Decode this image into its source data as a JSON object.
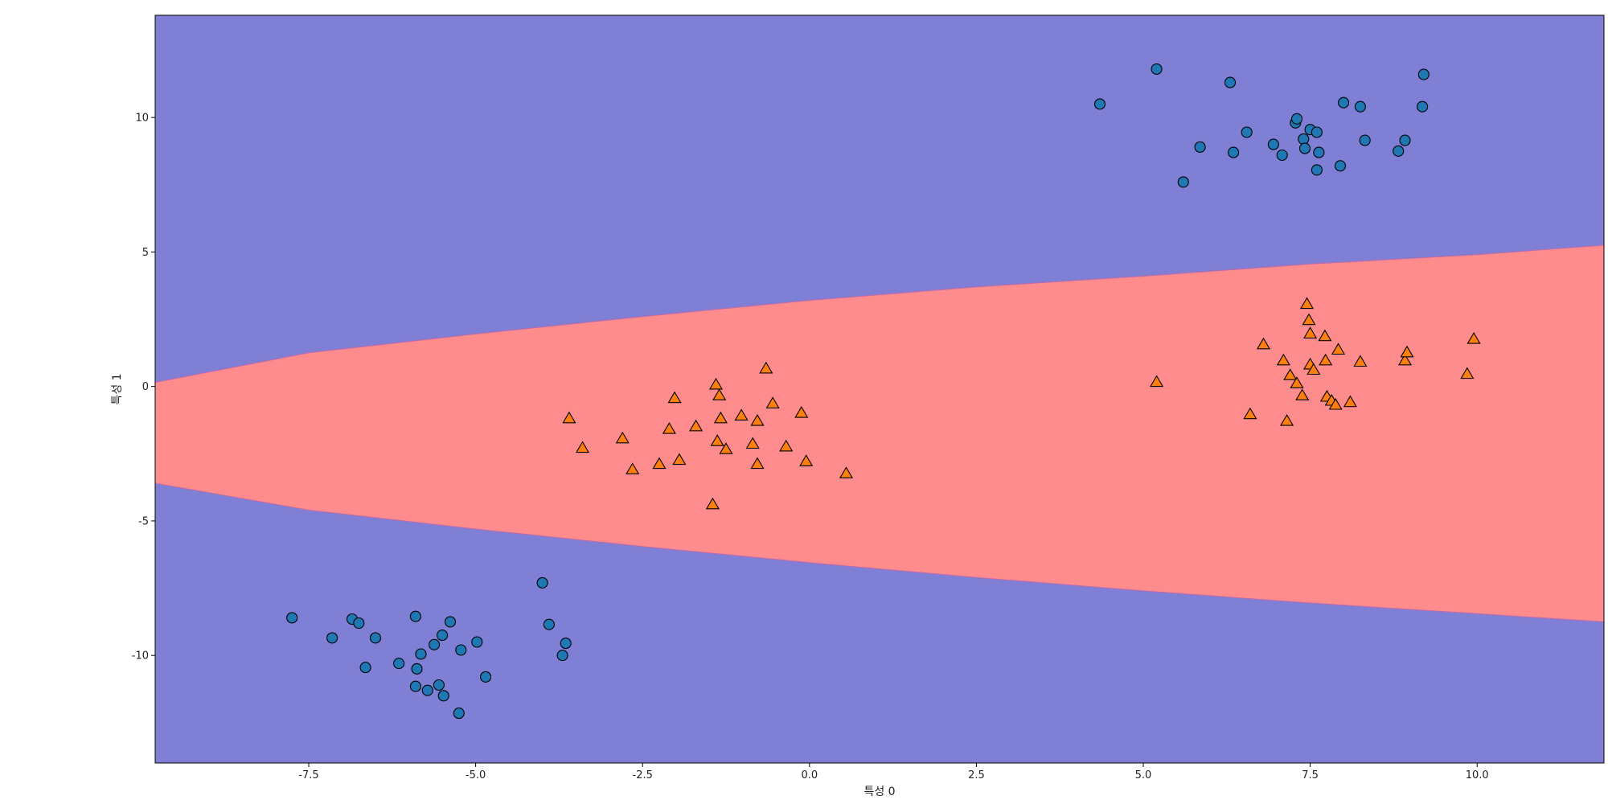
{
  "chart_data": {
    "type": "scatter",
    "title": "",
    "xlabel": "특성 0",
    "ylabel": "특성 1",
    "xlim": [
      -9.8,
      11.9
    ],
    "ylim": [
      -14.0,
      13.8
    ],
    "x_ticks": [
      -7.5,
      -5.0,
      -2.5,
      0.0,
      2.5,
      5.0,
      7.5,
      10.0
    ],
    "x_tick_labels": [
      "-7.5",
      "-5.0",
      "-2.5",
      "0.0",
      "2.5",
      "5.0",
      "7.5",
      "10.0"
    ],
    "y_ticks": [
      -10,
      -5,
      0,
      5,
      10
    ],
    "y_tick_labels": [
      "-10",
      "-5",
      "0",
      "5",
      "10"
    ],
    "background_colors": {
      "class_0": "#7f7fd5",
      "class_1": "#ff8c8c"
    },
    "decision_boundary": {
      "upper": [
        [
          -9.8,
          0.15
        ],
        [
          -7.5,
          1.25
        ],
        [
          -5.0,
          1.95
        ],
        [
          -2.5,
          2.6
        ],
        [
          0.0,
          3.2
        ],
        [
          2.5,
          3.7
        ],
        [
          5.0,
          4.1
        ],
        [
          7.5,
          4.55
        ],
        [
          10.0,
          4.9
        ],
        [
          11.9,
          5.25
        ]
      ],
      "lower": [
        [
          -9.8,
          -3.6
        ],
        [
          -7.5,
          -4.6
        ],
        [
          -5.0,
          -5.3
        ],
        [
          -2.5,
          -5.95
        ],
        [
          0.0,
          -6.55
        ],
        [
          2.5,
          -7.1
        ],
        [
          5.0,
          -7.6
        ],
        [
          7.5,
          -8.05
        ],
        [
          10.0,
          -8.45
        ],
        [
          11.9,
          -8.75
        ]
      ]
    },
    "series": [
      {
        "marker": "circle",
        "color": "#1f77b4",
        "points": [
          [
            4.35,
            10.5
          ],
          [
            5.2,
            11.8
          ],
          [
            5.6,
            7.6
          ],
          [
            5.85,
            8.9
          ],
          [
            6.3,
            11.3
          ],
          [
            6.35,
            8.7
          ],
          [
            6.55,
            9.45
          ],
          [
            6.95,
            9.0
          ],
          [
            7.08,
            8.6
          ],
          [
            7.28,
            9.8
          ],
          [
            7.3,
            9.95
          ],
          [
            7.4,
            9.2
          ],
          [
            7.42,
            8.85
          ],
          [
            7.5,
            9.55
          ],
          [
            7.6,
            9.45
          ],
          [
            7.6,
            8.05
          ],
          [
            7.63,
            8.7
          ],
          [
            7.95,
            8.2
          ],
          [
            8.0,
            10.55
          ],
          [
            8.25,
            10.4
          ],
          [
            8.32,
            9.15
          ],
          [
            8.82,
            8.75
          ],
          [
            8.92,
            9.15
          ],
          [
            9.18,
            10.4
          ],
          [
            9.2,
            11.6
          ],
          [
            -7.75,
            -8.6
          ],
          [
            -7.15,
            -9.35
          ],
          [
            -6.85,
            -8.65
          ],
          [
            -6.75,
            -8.8
          ],
          [
            -6.65,
            -10.45
          ],
          [
            -6.5,
            -9.35
          ],
          [
            -6.15,
            -10.3
          ],
          [
            -5.9,
            -8.55
          ],
          [
            -5.9,
            -11.15
          ],
          [
            -5.88,
            -10.5
          ],
          [
            -5.82,
            -9.95
          ],
          [
            -5.72,
            -11.3
          ],
          [
            -5.62,
            -9.6
          ],
          [
            -5.55,
            -11.1
          ],
          [
            -5.5,
            -9.25
          ],
          [
            -5.48,
            -11.5
          ],
          [
            -5.38,
            -8.75
          ],
          [
            -5.25,
            -12.15
          ],
          [
            -5.22,
            -9.8
          ],
          [
            -4.98,
            -9.5
          ],
          [
            -4.85,
            -10.8
          ],
          [
            -4.0,
            -7.3
          ],
          [
            -3.9,
            -8.85
          ],
          [
            -3.7,
            -10.0
          ],
          [
            -3.65,
            -9.55
          ]
        ]
      },
      {
        "marker": "triangle",
        "color": "#ff7f0e",
        "points": [
          [
            -3.6,
            -1.2
          ],
          [
            -3.4,
            -2.3
          ],
          [
            -2.8,
            -1.95
          ],
          [
            -2.65,
            -3.1
          ],
          [
            -2.25,
            -2.9
          ],
          [
            -2.1,
            -1.6
          ],
          [
            -2.02,
            -0.45
          ],
          [
            -1.95,
            -2.75
          ],
          [
            -1.7,
            -1.5
          ],
          [
            -1.45,
            -4.4
          ],
          [
            -1.4,
            0.05
          ],
          [
            -1.38,
            -2.05
          ],
          [
            -1.35,
            -0.35
          ],
          [
            -1.33,
            -1.2
          ],
          [
            -1.25,
            -2.35
          ],
          [
            -1.02,
            -1.1
          ],
          [
            -0.85,
            -2.15
          ],
          [
            -0.78,
            -1.3
          ],
          [
            -0.78,
            -2.9
          ],
          [
            -0.65,
            0.65
          ],
          [
            -0.55,
            -0.65
          ],
          [
            -0.35,
            -2.25
          ],
          [
            -0.12,
            -1.0
          ],
          [
            -0.05,
            -2.8
          ],
          [
            0.55,
            -3.25
          ],
          [
            5.2,
            0.15
          ],
          [
            6.6,
            -1.05
          ],
          [
            6.8,
            1.55
          ],
          [
            7.1,
            0.95
          ],
          [
            7.15,
            -1.3
          ],
          [
            7.2,
            0.4
          ],
          [
            7.3,
            0.1
          ],
          [
            7.38,
            -0.35
          ],
          [
            7.45,
            3.05
          ],
          [
            7.48,
            2.45
          ],
          [
            7.5,
            1.95
          ],
          [
            7.5,
            0.8
          ],
          [
            7.55,
            0.6
          ],
          [
            7.72,
            1.85
          ],
          [
            7.73,
            0.95
          ],
          [
            7.75,
            -0.4
          ],
          [
            7.82,
            -0.55
          ],
          [
            7.88,
            -0.7
          ],
          [
            7.92,
            1.35
          ],
          [
            8.1,
            -0.6
          ],
          [
            8.25,
            0.9
          ],
          [
            8.92,
            0.95
          ],
          [
            8.95,
            1.25
          ],
          [
            9.85,
            0.45
          ],
          [
            9.95,
            1.75
          ]
        ]
      }
    ]
  }
}
